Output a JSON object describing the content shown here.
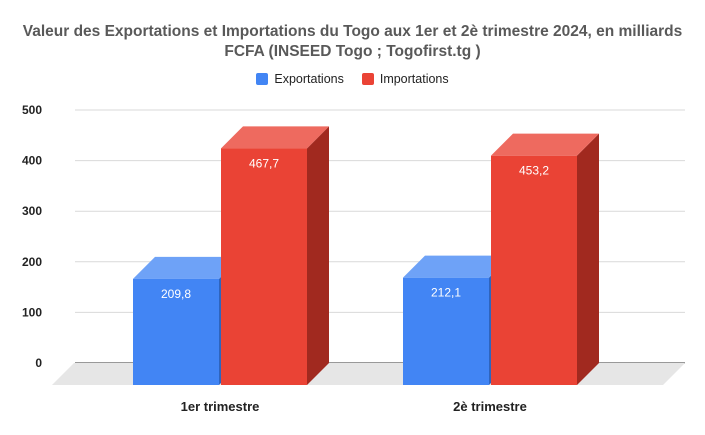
{
  "chart_data": {
    "type": "bar",
    "title_line1": "Valeur des Exportations et Importations du Togo aux 1er  et 2è trimestre 2024, en milliards",
    "title_line2": "FCFA (INSEED Togo ; Togofirst.tg )",
    "categories": [
      "1er trimestre",
      "2è trimestre"
    ],
    "series": [
      {
        "name": "Exportations",
        "values": [
          209.8,
          212.1
        ],
        "labels": [
          "209,8",
          "212,1"
        ],
        "color": "#4285f4",
        "top_color": "#6ea2f7",
        "side_color": "#2f64bd"
      },
      {
        "name": "Importations",
        "values": [
          467.7,
          453.2
        ],
        "labels": [
          "467,7",
          "453,2"
        ],
        "color": "#ea4335",
        "top_color": "#ee6a5f",
        "side_color": "#a1291f"
      }
    ],
    "yticks": [
      "0",
      "100",
      "200",
      "300",
      "400",
      "500"
    ],
    "ylim": [
      0,
      500
    ],
    "grid": true,
    "legend_position": "top",
    "label_color": "#ffffff",
    "floor_color": "#e6e6e6"
  }
}
